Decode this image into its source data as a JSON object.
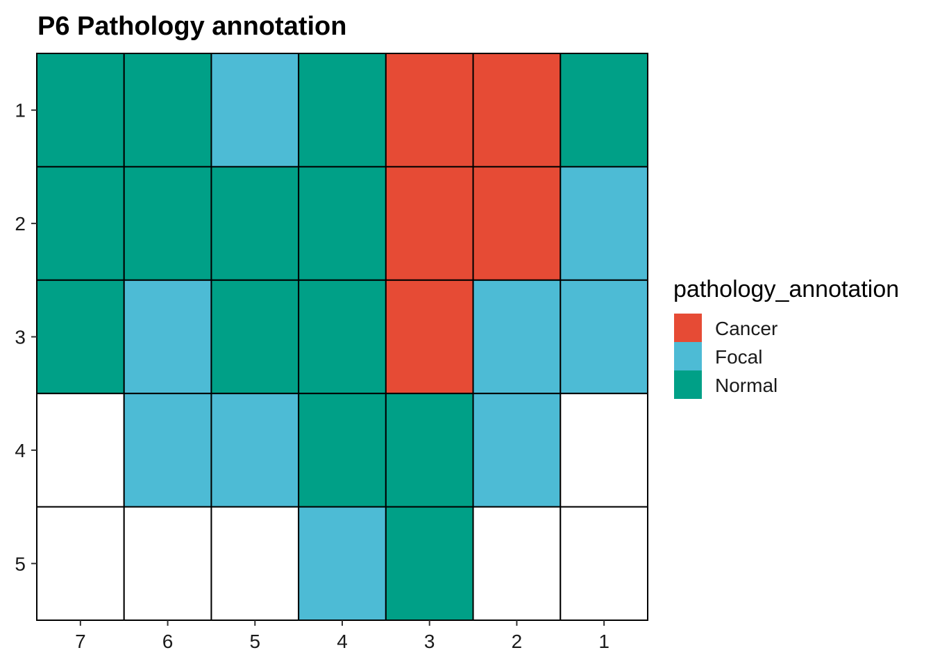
{
  "chart_data": {
    "type": "heatmap",
    "title": "P6 Pathology annotation",
    "x_categories": [
      "7",
      "6",
      "5",
      "4",
      "3",
      "2",
      "1"
    ],
    "y_categories": [
      "1",
      "2",
      "3",
      "4",
      "5"
    ],
    "cells": [
      [
        "Normal",
        "Normal",
        "Focal",
        "Normal",
        "Cancer",
        "Cancer",
        "Normal"
      ],
      [
        "Normal",
        "Normal",
        "Normal",
        "Normal",
        "Cancer",
        "Cancer",
        "Focal"
      ],
      [
        "Normal",
        "Focal",
        "Normal",
        "Normal",
        "Cancer",
        "Focal",
        "Focal"
      ],
      [
        null,
        "Focal",
        "Focal",
        "Normal",
        "Normal",
        "Focal",
        null
      ],
      [
        null,
        null,
        null,
        "Focal",
        "Normal",
        null,
        null
      ]
    ],
    "legend": {
      "title": "pathology_annotation",
      "placement": "right",
      "entries": [
        {
          "label": "Cancer",
          "color": "#E64B35"
        },
        {
          "label": "Focal",
          "color": "#4DBBD5"
        },
        {
          "label": "Normal",
          "color": "#00A087"
        }
      ]
    },
    "empty_color": "#ffffff",
    "grid": false
  }
}
